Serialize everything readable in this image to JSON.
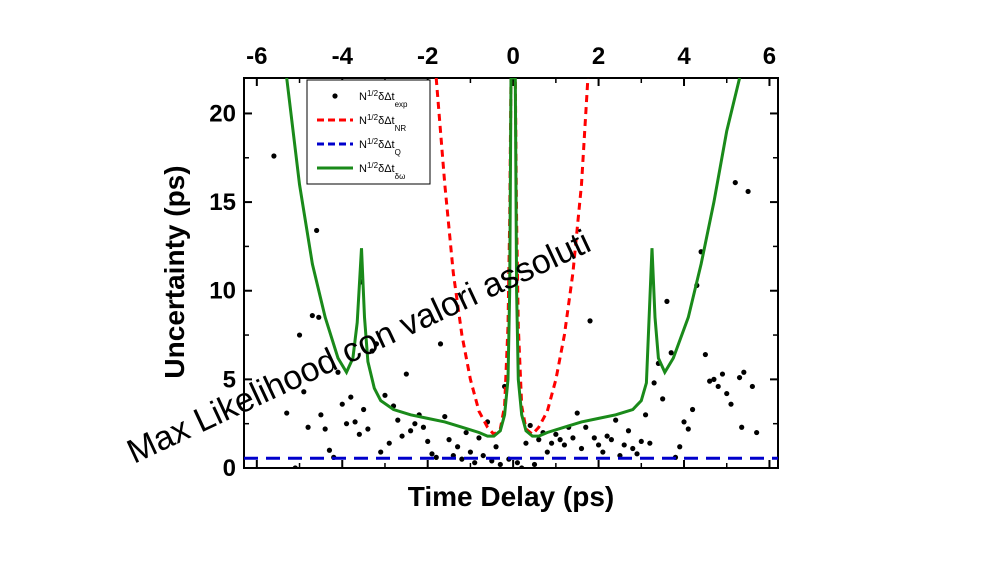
{
  "chart_data": {
    "type": "line",
    "xlabel": "Time Delay (ps)",
    "ylabel": "Uncertainty (ps)",
    "xlim": [
      -6.3,
      6.2
    ],
    "ylim": [
      0,
      22
    ],
    "top_xticks": [
      "-6",
      "-4",
      "-2",
      "0",
      "2",
      "4",
      "6"
    ],
    "top_xtick_values": [
      -6,
      -4,
      -2,
      0,
      2,
      4,
      6
    ],
    "yticks": [
      "0",
      "5",
      "10",
      "15",
      "20"
    ],
    "ytick_values": [
      0,
      5,
      10,
      15,
      20
    ],
    "legend": [
      {
        "base": "N",
        "sup": "1/2",
        "mid": "δΔt",
        "sub": "exp",
        "style": "dots",
        "color": "#000000"
      },
      {
        "base": "N",
        "sup": "1/2",
        "mid": "δΔt",
        "sub": "NR",
        "style": "dashed",
        "color": "#ff0000"
      },
      {
        "base": "N",
        "sup": "1/2",
        "mid": "δΔt",
        "sub": "Q",
        "style": "dashed",
        "color": "#0000cc"
      },
      {
        "base": "N",
        "sup": "1/2",
        "mid": "δΔt",
        "sub": "δω",
        "style": "solid",
        "color": "#1a8a1a"
      }
    ],
    "annotation": "Max Likelihood con valori assoluti",
    "series": [
      {
        "key": "exp",
        "style": "dots",
        "color": "#000000",
        "points": [
          [
            -5.6,
            17.6
          ],
          [
            -5.3,
            3.1
          ],
          [
            -5.1,
            0.0
          ],
          [
            -5.0,
            7.5
          ],
          [
            -4.9,
            4.3
          ],
          [
            -4.8,
            2.3
          ],
          [
            -4.7,
            8.6
          ],
          [
            -4.6,
            13.4
          ],
          [
            -4.55,
            8.5
          ],
          [
            -4.5,
            3.0
          ],
          [
            -4.4,
            2.2
          ],
          [
            -4.3,
            1.0
          ],
          [
            -4.2,
            0.6
          ],
          [
            -4.1,
            5.4
          ],
          [
            -4.0,
            3.6
          ],
          [
            -3.9,
            2.5
          ],
          [
            -3.8,
            4.0
          ],
          [
            -3.7,
            2.6
          ],
          [
            -3.6,
            1.9
          ],
          [
            -3.55,
            10.5
          ],
          [
            -3.5,
            3.3
          ],
          [
            -3.4,
            2.2
          ],
          [
            -3.3,
            6.6
          ],
          [
            -3.2,
            7.0
          ],
          [
            -3.1,
            0.9
          ],
          [
            -3.0,
            4.1
          ],
          [
            -2.9,
            1.4
          ],
          [
            -2.8,
            3.5
          ],
          [
            -2.7,
            2.7
          ],
          [
            -2.6,
            1.8
          ],
          [
            -2.5,
            5.3
          ],
          [
            -2.4,
            2.1
          ],
          [
            -2.3,
            2.5
          ],
          [
            -2.2,
            3.0
          ],
          [
            -2.1,
            2.3
          ],
          [
            -2.0,
            1.5
          ],
          [
            -1.9,
            0.8
          ],
          [
            -1.8,
            0.6
          ],
          [
            -1.7,
            7.0
          ],
          [
            -1.6,
            2.9
          ],
          [
            -1.5,
            1.6
          ],
          [
            -1.4,
            0.7
          ],
          [
            -1.3,
            1.2
          ],
          [
            -1.2,
            0.5
          ],
          [
            -1.1,
            2.0
          ],
          [
            -1.0,
            0.9
          ],
          [
            -0.9,
            0.3
          ],
          [
            -0.8,
            1.7
          ],
          [
            -0.7,
            0.7
          ],
          [
            -0.6,
            2.6
          ],
          [
            -0.5,
            0.4
          ],
          [
            -0.4,
            1.2
          ],
          [
            -0.3,
            0.2
          ],
          [
            -0.2,
            4.6
          ],
          [
            -0.1,
            0.5
          ],
          [
            0.1,
            0.3
          ],
          [
            0.2,
            0.0
          ],
          [
            0.3,
            1.4
          ],
          [
            0.4,
            2.4
          ],
          [
            0.5,
            0.2
          ],
          [
            0.6,
            1.6
          ],
          [
            0.7,
            2.0
          ],
          [
            0.8,
            0.9
          ],
          [
            0.9,
            1.4
          ],
          [
            1.0,
            1.9
          ],
          [
            1.1,
            1.6
          ],
          [
            1.2,
            1.3
          ],
          [
            1.3,
            2.3
          ],
          [
            1.4,
            1.7
          ],
          [
            1.5,
            3.1
          ],
          [
            1.6,
            1.1
          ],
          [
            1.7,
            2.3
          ],
          [
            1.8,
            8.3
          ],
          [
            1.9,
            1.7
          ],
          [
            2.0,
            1.3
          ],
          [
            2.1,
            0.9
          ],
          [
            2.2,
            1.8
          ],
          [
            2.3,
            1.6
          ],
          [
            2.4,
            2.7
          ],
          [
            2.5,
            0.7
          ],
          [
            2.6,
            1.3
          ],
          [
            2.7,
            2.1
          ],
          [
            2.8,
            1.1
          ],
          [
            2.9,
            0.8
          ],
          [
            3.0,
            1.5
          ],
          [
            3.1,
            3.0
          ],
          [
            3.2,
            1.4
          ],
          [
            3.3,
            4.8
          ],
          [
            3.4,
            5.9
          ],
          [
            3.5,
            3.9
          ],
          [
            3.6,
            9.4
          ],
          [
            3.7,
            6.5
          ],
          [
            3.8,
            0.6
          ],
          [
            3.9,
            1.2
          ],
          [
            4.0,
            2.6
          ],
          [
            4.1,
            2.2
          ],
          [
            4.2,
            3.3
          ],
          [
            4.3,
            10.3
          ],
          [
            4.4,
            12.2
          ],
          [
            4.5,
            6.4
          ],
          [
            4.6,
            4.9
          ],
          [
            4.7,
            5.0
          ],
          [
            4.8,
            4.6
          ],
          [
            4.9,
            5.3
          ],
          [
            5.0,
            4.2
          ],
          [
            5.1,
            3.6
          ],
          [
            5.2,
            16.1
          ],
          [
            5.3,
            5.1
          ],
          [
            5.35,
            2.3
          ],
          [
            5.4,
            5.4
          ],
          [
            5.5,
            15.6
          ],
          [
            5.6,
            4.6
          ],
          [
            5.7,
            2.0
          ]
        ]
      },
      {
        "key": "NR",
        "style": "dashed",
        "color": "#ff0000",
        "points": [
          [
            -1.8,
            22
          ],
          [
            -1.6,
            16
          ],
          [
            -1.4,
            11
          ],
          [
            -1.2,
            7.5
          ],
          [
            -1.0,
            5.0
          ],
          [
            -0.8,
            3.2
          ],
          [
            -0.6,
            2.3
          ],
          [
            -0.45,
            1.9
          ],
          [
            -0.3,
            2.2
          ],
          [
            -0.2,
            3.5
          ],
          [
            -0.12,
            8
          ],
          [
            -0.08,
            14
          ],
          [
            -0.05,
            22
          ],
          [
            0.05,
            22
          ],
          [
            0.08,
            14
          ],
          [
            0.12,
            8
          ],
          [
            0.2,
            3.5
          ],
          [
            0.3,
            2.2
          ],
          [
            0.45,
            1.9
          ],
          [
            0.6,
            2.3
          ],
          [
            0.8,
            3.2
          ],
          [
            1.0,
            5.0
          ],
          [
            1.2,
            7.5
          ],
          [
            1.4,
            11
          ],
          [
            1.6,
            16
          ],
          [
            1.75,
            22
          ]
        ]
      },
      {
        "key": "Q",
        "style": "dashed",
        "color": "#0000cc",
        "points": [
          [
            -6.3,
            0.55
          ],
          [
            6.2,
            0.55
          ]
        ]
      },
      {
        "key": "dw",
        "style": "solid",
        "color": "#1a8a1a",
        "points": [
          [
            -5.3,
            22
          ],
          [
            -5.0,
            16
          ],
          [
            -4.7,
            11.5
          ],
          [
            -4.4,
            8.5
          ],
          [
            -4.1,
            6.2
          ],
          [
            -3.9,
            5.4
          ],
          [
            -3.75,
            6.2
          ],
          [
            -3.65,
            8.2
          ],
          [
            -3.55,
            12.4
          ],
          [
            -3.48,
            8.5
          ],
          [
            -3.4,
            6.0
          ],
          [
            -3.25,
            4.5
          ],
          [
            -3.1,
            3.8
          ],
          [
            -2.8,
            3.3
          ],
          [
            -2.4,
            3.0
          ],
          [
            -2.0,
            2.8
          ],
          [
            -1.6,
            2.6
          ],
          [
            -1.2,
            2.3
          ],
          [
            -0.8,
            2.0
          ],
          [
            -0.6,
            1.8
          ],
          [
            -0.45,
            1.8
          ],
          [
            -0.3,
            2.1
          ],
          [
            -0.2,
            3.0
          ],
          [
            -0.12,
            5
          ],
          [
            -0.08,
            10
          ],
          [
            -0.05,
            22
          ],
          [
            0.05,
            22
          ],
          [
            0.08,
            10
          ],
          [
            0.12,
            5
          ],
          [
            0.2,
            3.0
          ],
          [
            0.3,
            2.1
          ],
          [
            0.45,
            1.8
          ],
          [
            0.6,
            1.8
          ],
          [
            0.8,
            2.0
          ],
          [
            1.2,
            2.3
          ],
          [
            1.6,
            2.6
          ],
          [
            2.0,
            2.8
          ],
          [
            2.4,
            3.0
          ],
          [
            2.8,
            3.3
          ],
          [
            3.0,
            3.8
          ],
          [
            3.12,
            4.8
          ],
          [
            3.25,
            12.4
          ],
          [
            3.32,
            8.5
          ],
          [
            3.4,
            6.2
          ],
          [
            3.55,
            5.4
          ],
          [
            3.75,
            6.2
          ],
          [
            4.1,
            8.5
          ],
          [
            4.4,
            11.5
          ],
          [
            4.7,
            15
          ],
          [
            5.0,
            19
          ],
          [
            5.3,
            22
          ]
        ]
      }
    ]
  }
}
